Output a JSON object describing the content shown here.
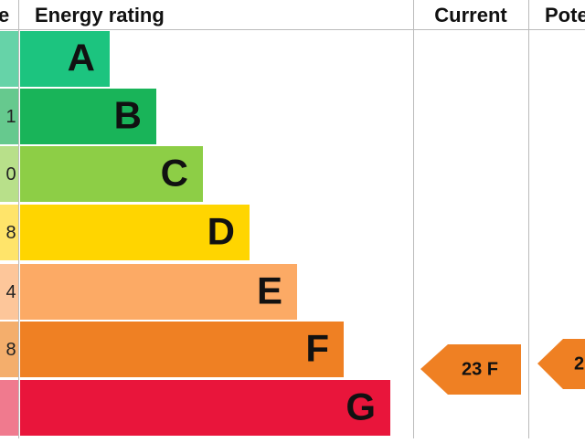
{
  "header": {
    "score": "e",
    "rating": "Energy rating",
    "current": "Current",
    "potential": "Pote"
  },
  "rows": [
    {
      "letter": "A"
    },
    {
      "score": "1",
      "letter": "B"
    },
    {
      "score": "0",
      "letter": "C"
    },
    {
      "score": "8",
      "letter": "D"
    },
    {
      "score": "4",
      "letter": "E"
    },
    {
      "score": "8",
      "letter": "F"
    },
    {
      "letter": "G"
    }
  ],
  "current": "23 F",
  "potential": "2"
}
